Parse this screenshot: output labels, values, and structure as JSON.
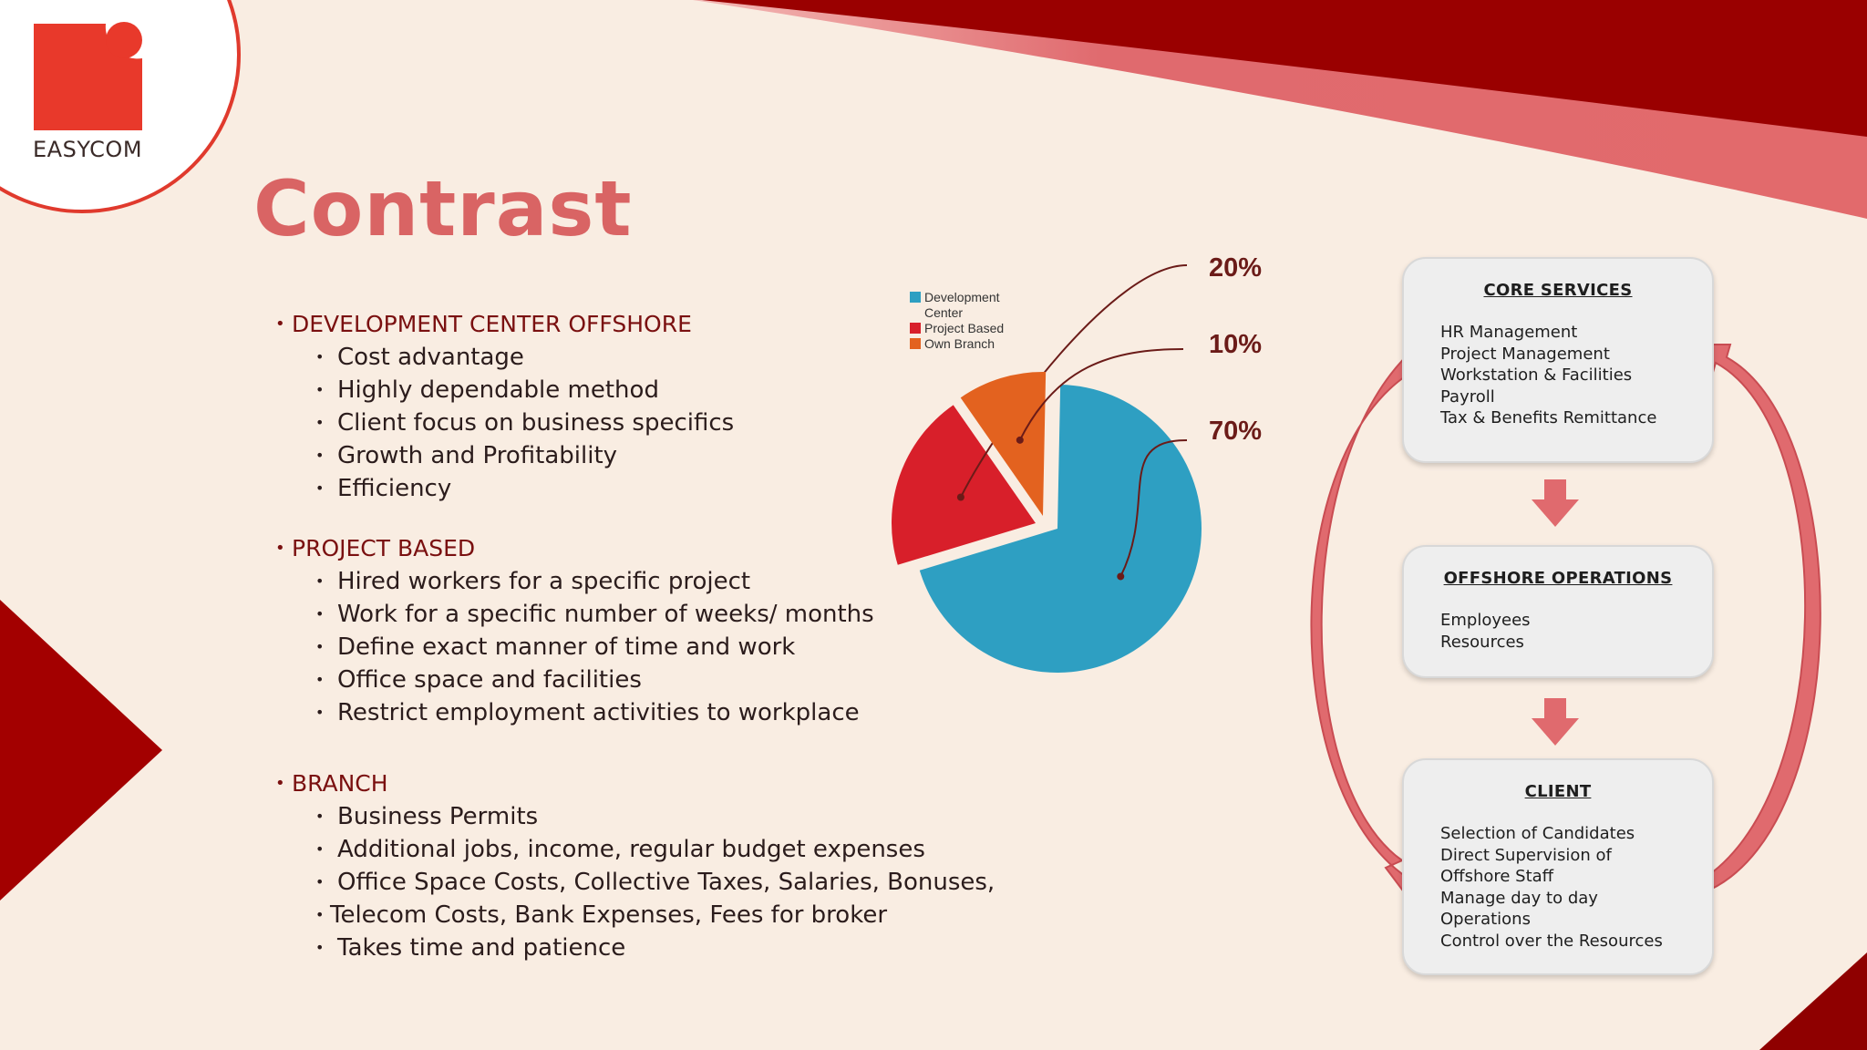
{
  "logo": {
    "wordmark": "EASYCOM"
  },
  "title": "Contrast",
  "sections": [
    {
      "heading": "DEVELOPMENT CENTER OFFSHORE",
      "items": [
        "Cost advantage",
        "Highly dependable method",
        "Client focus on business specifics",
        "Growth and Profitability",
        "Efficiency"
      ]
    },
    {
      "heading": "PROJECT BASED",
      "items": [
        "Hired workers for a specific project",
        "Work for a specific number of weeks/ months",
        "Define exact manner of  time and work",
        "Office space and facilities",
        "Restrict   employment  activities to workplace"
      ]
    },
    {
      "heading": "BRANCH",
      "items": [
        "Business Permits",
        "Additional jobs, income, regular budget expenses",
        "Office Space Costs, Collective Taxes, Salaries, Bonuses,",
        "Telecom Costs, Bank Expenses,  Fees for broker",
        "Takes time and patience"
      ]
    }
  ],
  "chart_data": {
    "type": "pie",
    "slices": [
      {
        "label": "Development Center",
        "value": 70,
        "color": "#2e9fc2"
      },
      {
        "label": "Project Based",
        "value": 20,
        "color": "#d81f2a"
      },
      {
        "label": "Own Branch",
        "value": 10,
        "color": "#e3621f"
      }
    ],
    "data_labels": [
      "20%",
      "10%",
      "70%"
    ],
    "legend": [
      "Development Center",
      "Project Based",
      "Own Branch"
    ],
    "legend_placement": "top-left"
  },
  "flow": {
    "core": {
      "title": "CORE SERVICES",
      "lines": [
        "HR Management",
        "Project Management",
        "Workstation & Facilities",
        "Payroll",
        "Tax & Benefits Remittance"
      ]
    },
    "offshore": {
      "title": "OFFSHORE OPERATIONS",
      "lines": [
        "Employees",
        "Resources"
      ]
    },
    "client": {
      "title": "CLIENT",
      "lines": [
        "Selection of Candidates",
        "Direct Supervision of",
        "Offshore Staff",
        "Manage day to day",
        "Operations",
        "Control over the Resources"
      ]
    }
  },
  "colors": {
    "background": "#f9ede2",
    "accent_dark_red": "#9a0000",
    "accent_light_red": "#e06a6e",
    "logo_red": "#e8392b",
    "title": "#d96464",
    "heading": "#7a1010"
  }
}
